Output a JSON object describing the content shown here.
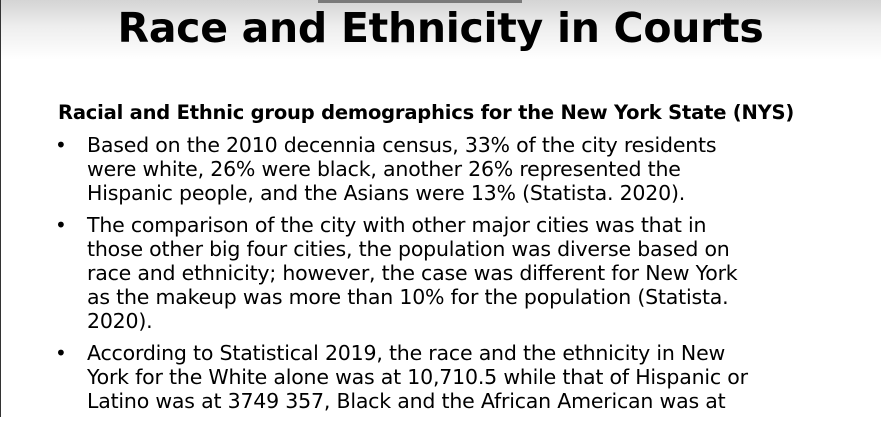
{
  "slide": {
    "title": "Race and Ethnicity in Courts",
    "subheading": "Racial and Ethnic group demographics for the New York State (NYS)",
    "bullets": [
      {
        "lines": [
          "Based on the 2010 decennia census, 33% of the city residents",
          "were white, 26% were black, another 26% represented the",
          "Hispanic people, and the Asians were 13% (Statista. 2020)."
        ]
      },
      {
        "lines": [
          "The comparison of the city with other major cities was that in",
          "those other big four cities, the population was diverse based on",
          "race and ethnicity; however, the case was different for New York",
          "as the makeup was more than 10% for the population (Statista.",
          "2020)."
        ]
      },
      {
        "lines": [
          "According to Statistical 2019, the race and the ethnicity in New",
          "York for the White alone was at 10,710.5 while that of Hispanic or",
          "Latino was at 3749 357, Black and the African American was at"
        ]
      }
    ],
    "bullet_symbol": "•"
  }
}
